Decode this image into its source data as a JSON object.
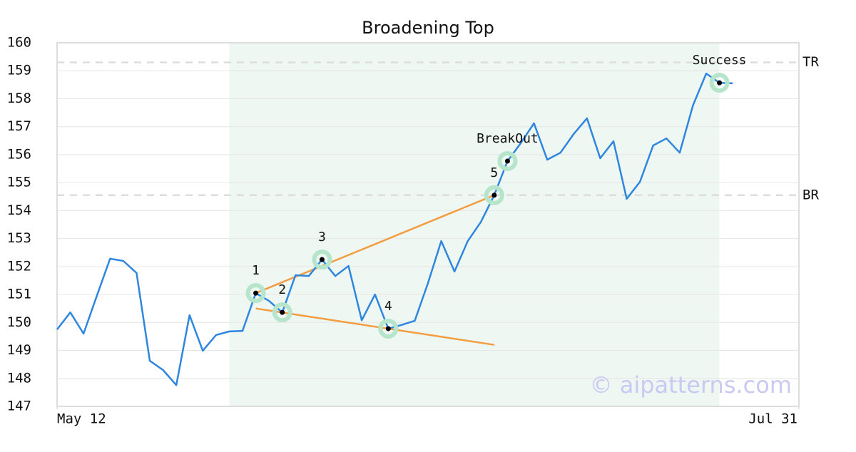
{
  "chart_data": {
    "type": "line",
    "title": "Broadening Top",
    "x": [
      0,
      1,
      2,
      3,
      4,
      5,
      6,
      7,
      8,
      9,
      10,
      11,
      12,
      13,
      14,
      15,
      16,
      17,
      18,
      19,
      20,
      21,
      22,
      23,
      24,
      25,
      26,
      27,
      28,
      29,
      30,
      31,
      32,
      33,
      34,
      35,
      36,
      37,
      38,
      39,
      40,
      41,
      42,
      43,
      44,
      45,
      46,
      47,
      48,
      49,
      50,
      51
    ],
    "series": [
      {
        "color": "#2e86de",
        "values": [
          149.75,
          150.36,
          149.6,
          150.95,
          152.28,
          152.2,
          151.77,
          148.63,
          148.3,
          147.76,
          150.26,
          148.99,
          149.55,
          149.68,
          149.7,
          151.05,
          150.77,
          150.36,
          151.69,
          151.66,
          152.25,
          151.66,
          152.02,
          150.08,
          151.0,
          149.78,
          149.91,
          150.06,
          151.41,
          152.91,
          151.82,
          152.91,
          153.6,
          154.55,
          155.77,
          156.41,
          157.12,
          155.82,
          156.07,
          156.74,
          157.3,
          155.87,
          156.48,
          154.42,
          155.03,
          156.33,
          156.58,
          156.07,
          157.76,
          158.9,
          158.57,
          158.55
        ]
      }
    ],
    "xlim": [
      0,
      56
    ],
    "xticks": [
      {
        "value": 0,
        "label": "May 12"
      },
      {
        "value": 56,
        "label": "Jul 31"
      }
    ],
    "ylim": [
      147,
      160
    ],
    "yticks": [
      147,
      148,
      149,
      150,
      151,
      152,
      153,
      154,
      155,
      156,
      157,
      158,
      159,
      160
    ],
    "grid": true,
    "highlight_x": [
      13,
      50
    ],
    "highlight_color": "#eef7f2",
    "levels": [
      {
        "label": "TR",
        "value": 159.3
      },
      {
        "label": "BR",
        "value": 154.55
      }
    ],
    "trendlines": [
      {
        "color": "#f39c40",
        "x": [
          15,
          33
        ],
        "values": [
          151.05,
          154.55
        ]
      },
      {
        "color": "#f39c40",
        "x": [
          15,
          33
        ],
        "values": [
          150.5,
          149.2
        ]
      }
    ],
    "markers": [
      {
        "label": "1",
        "x": 15,
        "y": 151.05
      },
      {
        "label": "2",
        "x": 17,
        "y": 150.36
      },
      {
        "label": "3",
        "x": 20,
        "y": 152.25
      },
      {
        "label": "4",
        "x": 25,
        "y": 149.78
      },
      {
        "label": "5",
        "x": 33,
        "y": 154.55
      },
      {
        "label": "BreakOut",
        "x": 34,
        "y": 155.77
      },
      {
        "label": "Success",
        "x": 50,
        "y": 158.57
      }
    ],
    "watermark": "© aipatterns.com"
  }
}
